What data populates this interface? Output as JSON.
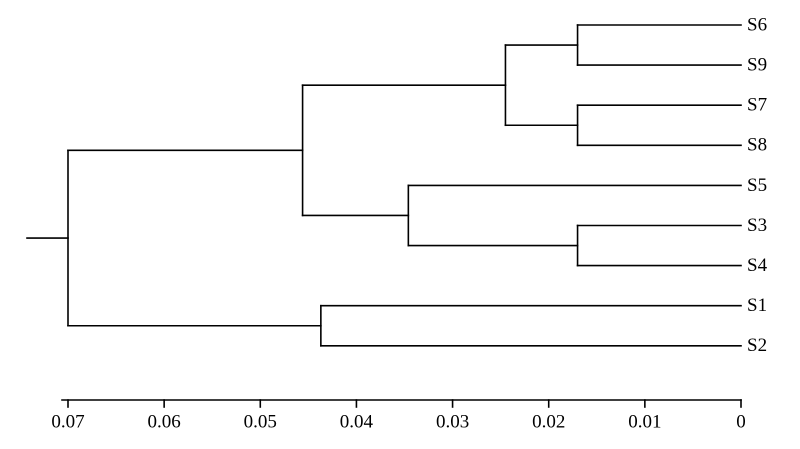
{
  "chart_data": {
    "type": "dendrogram",
    "leaves": [
      "S6",
      "S9",
      "S7",
      "S8",
      "S5",
      "S3",
      "S4",
      "S1",
      "S2"
    ],
    "merges": [
      {
        "children": [
          0,
          1
        ],
        "height": 0.017
      },
      {
        "children": [
          2,
          3
        ],
        "height": 0.017
      },
      {
        "children": [
          5,
          6
        ],
        "height": 0.017
      },
      {
        "children": [
          9,
          10
        ],
        "height": 0.0245
      },
      {
        "children": [
          4,
          11
        ],
        "height": 0.0346
      },
      {
        "children": [
          12,
          13
        ],
        "height": 0.0456
      },
      {
        "children": [
          7,
          8
        ],
        "height": 0.0437
      },
      {
        "children": [
          14,
          15
        ],
        "height": 0.07
      }
    ],
    "xlim": [
      0,
      0.07
    ],
    "x_reversed": true,
    "xticks": [
      0,
      0.01,
      0.02,
      0.03,
      0.04,
      0.05,
      0.06,
      0.07
    ],
    "color": "#000000"
  }
}
